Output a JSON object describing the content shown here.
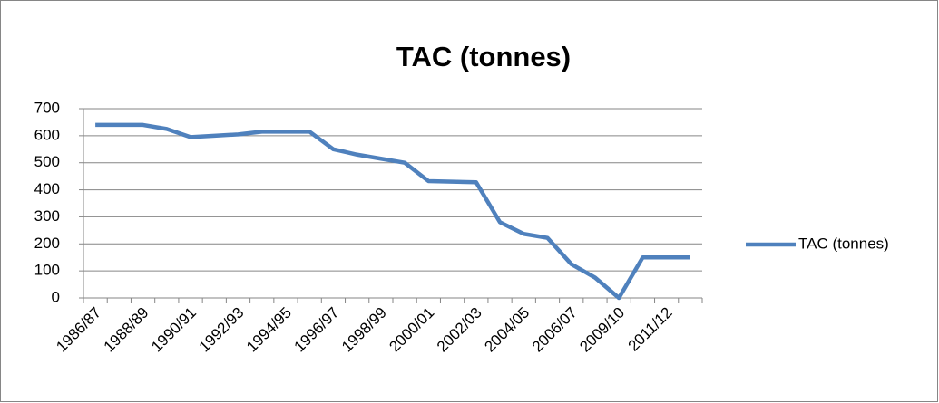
{
  "chart_data": {
    "type": "line",
    "title": "TAC (tonnes)",
    "categories": [
      "1986/87",
      null,
      "1988/89",
      null,
      "1990/91",
      null,
      "1992/93",
      null,
      "1994/95",
      null,
      "1996/97",
      null,
      "1998/99",
      null,
      "2000/01",
      null,
      "2002/03",
      null,
      "2004/05",
      null,
      "2006/07",
      null,
      "2009/10",
      null,
      "2011/12",
      null
    ],
    "series": [
      {
        "name": "TAC (tonnes)",
        "color": "#4f81bd",
        "values": [
          640,
          640,
          640,
          625,
          595,
          600,
          605,
          615,
          615,
          615,
          550,
          530,
          515,
          500,
          432,
          430,
          428,
          280,
          237,
          222,
          125,
          75,
          0,
          150,
          150,
          150
        ]
      }
    ],
    "ylim": [
      0,
      700
    ],
    "yticks": [
      0,
      100,
      200,
      300,
      400,
      500,
      600,
      700
    ],
    "grid": true,
    "legend": "right"
  }
}
